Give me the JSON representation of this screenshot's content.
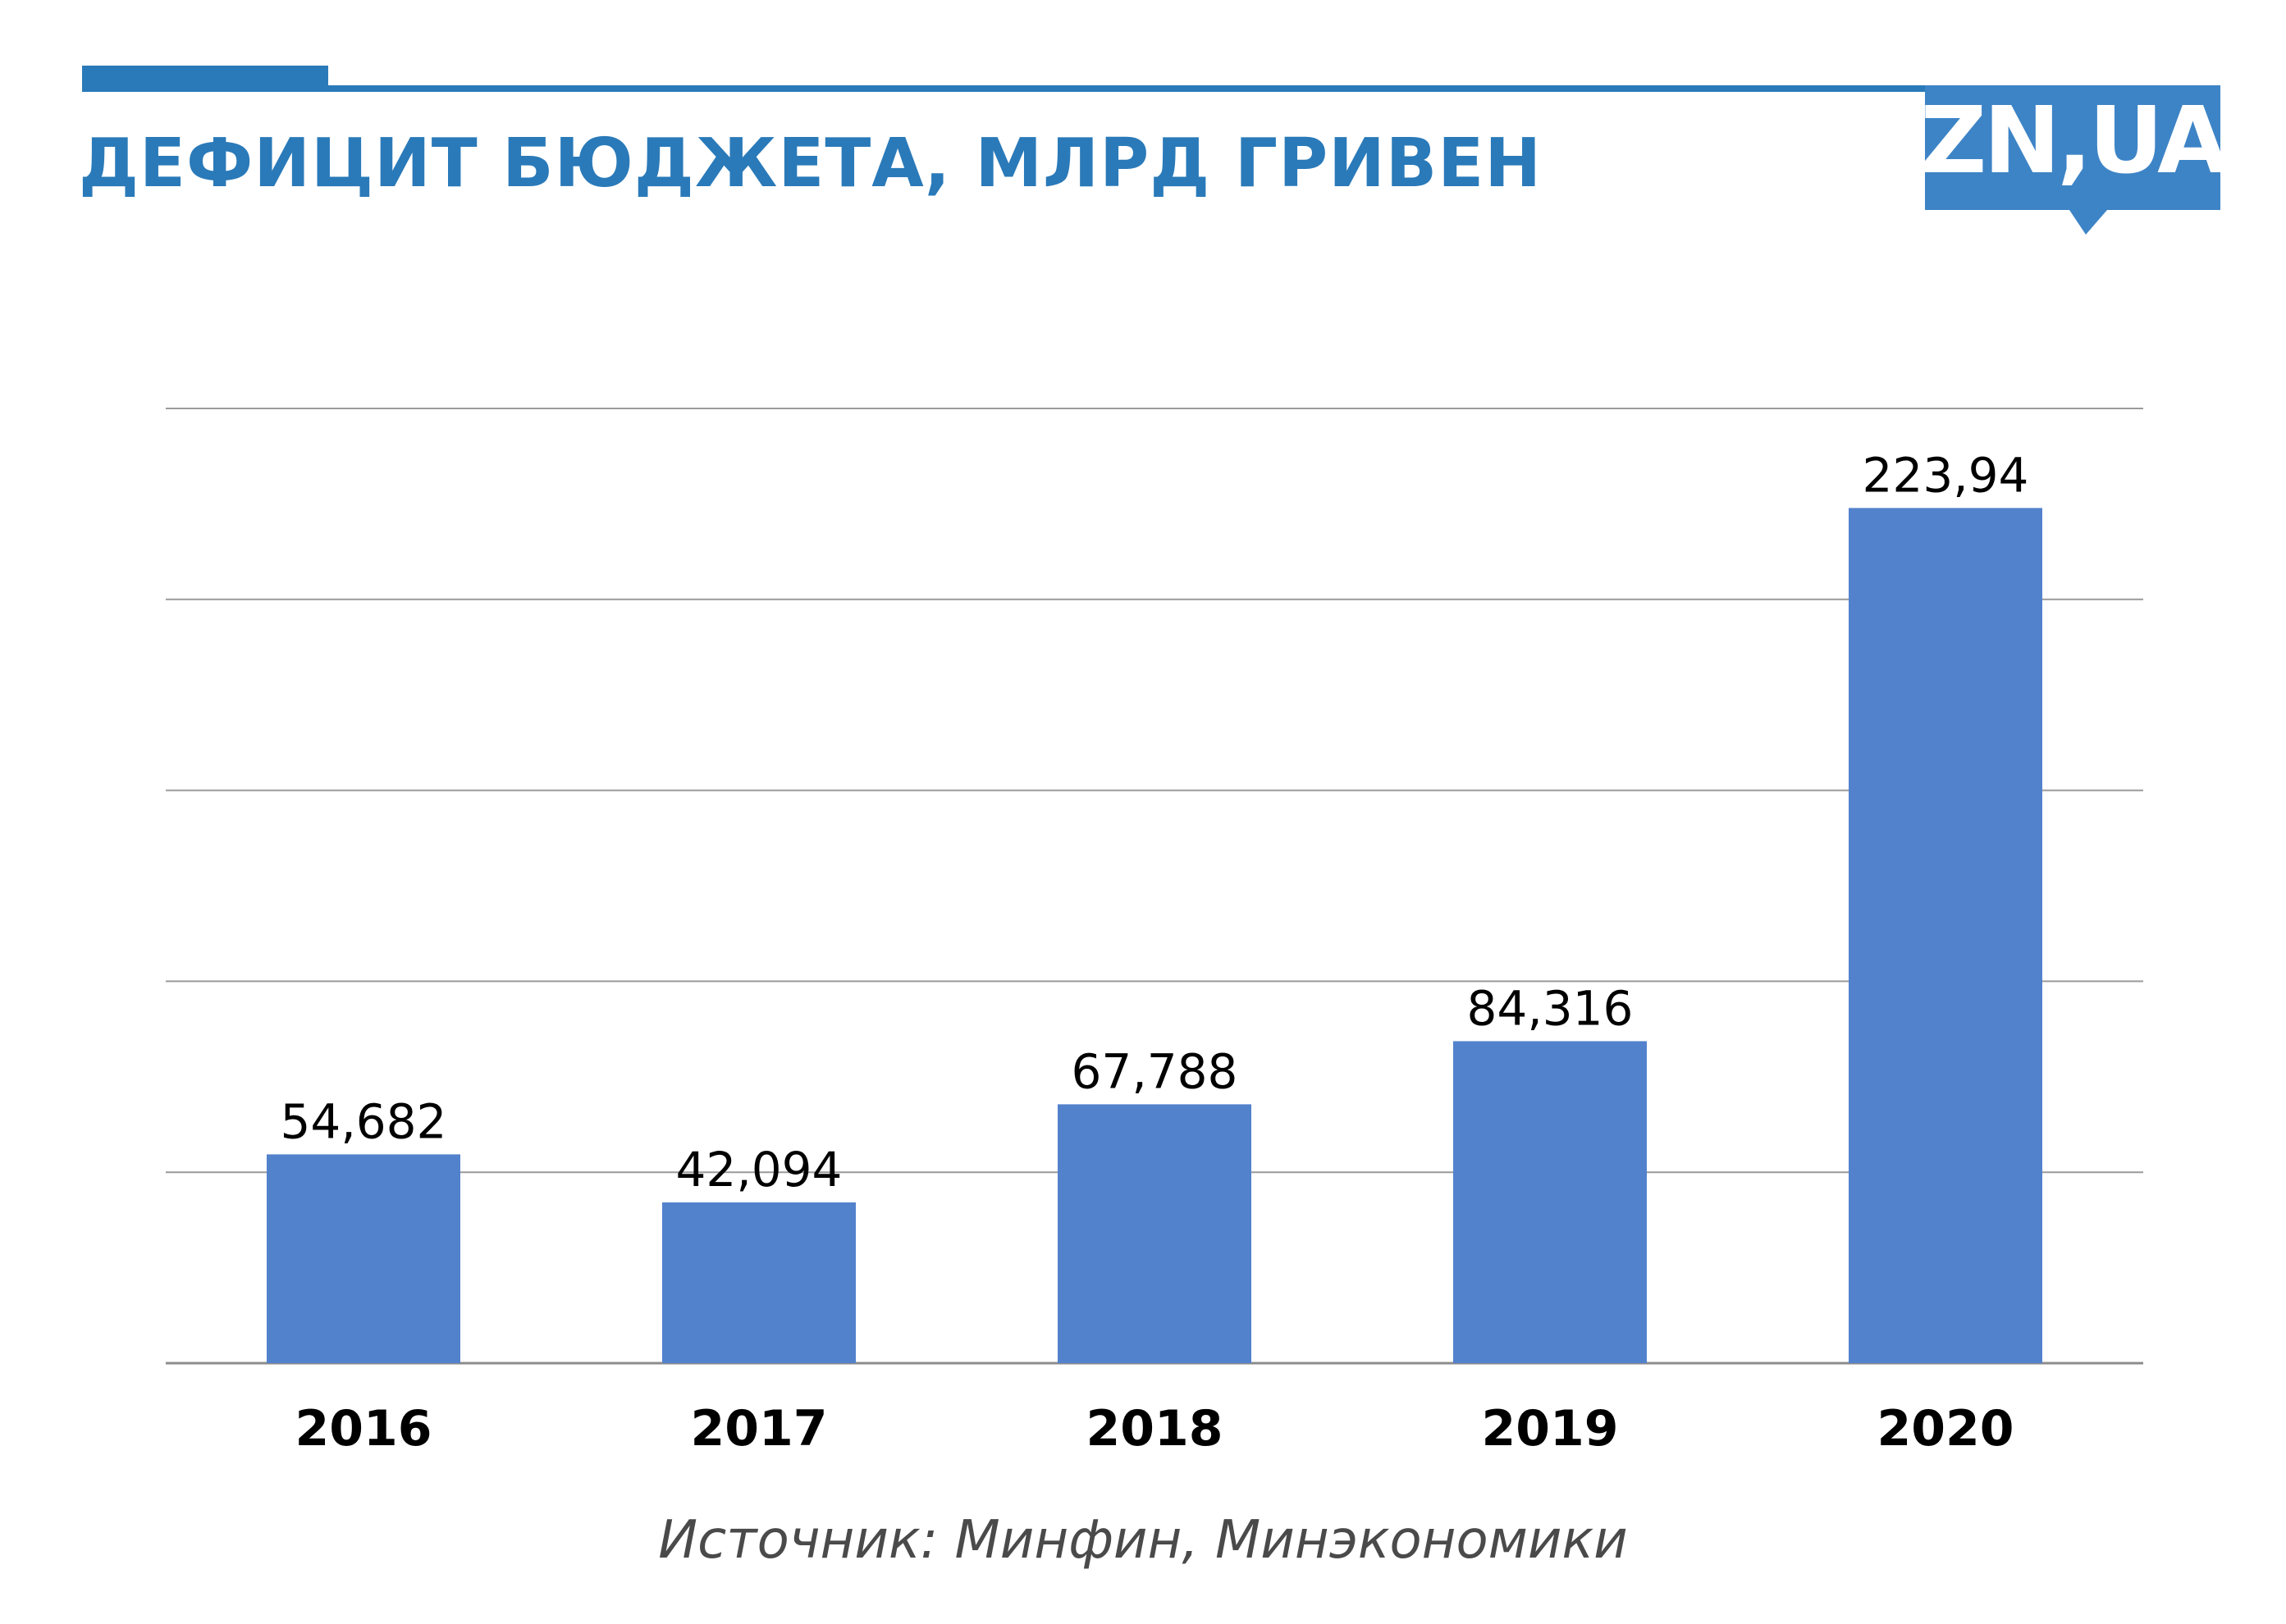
{
  "header": {
    "title": "ДЕФИЦИТ БЮДЖЕТА, МЛРД ГРИВЕН",
    "logo_text": "ZN,UA",
    "accent_color": "#2a7ab9"
  },
  "footer": {
    "source": "Источник: Минфин, Минэкономики"
  },
  "chart_data": {
    "type": "bar",
    "categories": [
      "2016",
      "2017",
      "2018",
      "2019",
      "2020"
    ],
    "values": [
      54.682,
      42.094,
      67.788,
      84.316,
      223.94
    ],
    "value_labels": [
      "54,682",
      "42,094",
      "67,788",
      "84,316",
      "223,94"
    ],
    "ylim": [
      0,
      250
    ],
    "gridlines": [
      50,
      100,
      150,
      200,
      250
    ],
    "grid": true,
    "y_tick_labels_visible": false,
    "legend": false,
    "bar_color": "#5382cd"
  }
}
